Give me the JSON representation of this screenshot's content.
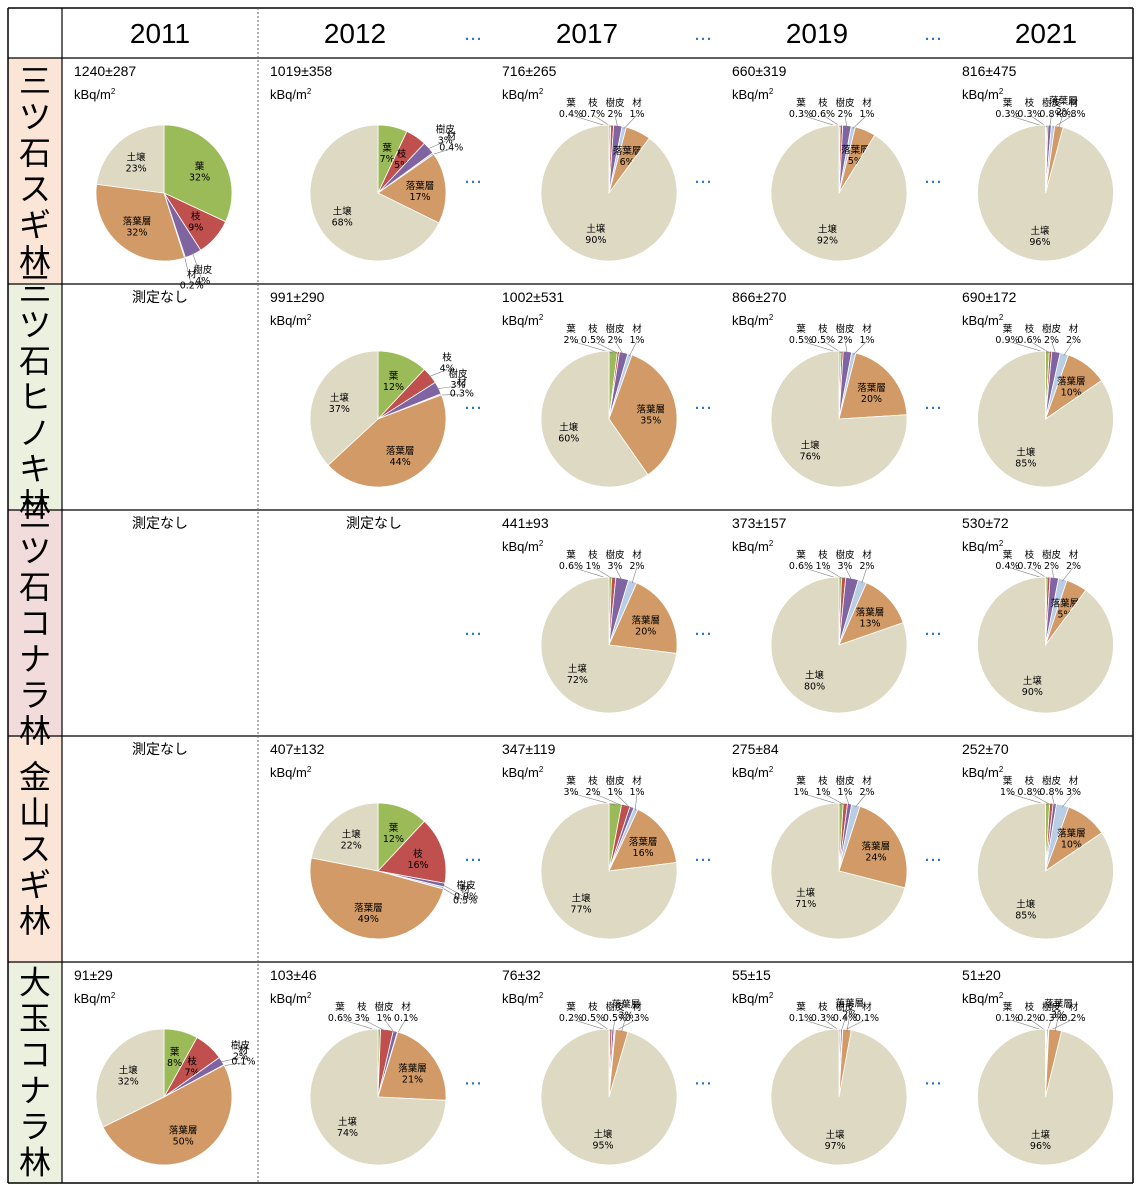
{
  "chart_data": {
    "type": "pie",
    "columns": [
      "2011",
      "2012",
      "2017",
      "2019",
      "2021"
    ],
    "rows": [
      "三ツ石スギ林",
      "三ツ石ヒノキ林",
      "三ツ石コナラ林",
      "金山スギ林",
      "大玉コナラ林"
    ],
    "unit": "kBq/m2",
    "no_measurement_label": "測定なし",
    "ellipsis": "…",
    "components": [
      {
        "name": "葉",
        "color": "#9bbb59"
      },
      {
        "name": "枝",
        "color": "#c0504d"
      },
      {
        "name": "樹皮",
        "color": "#8064a2"
      },
      {
        "name": "材",
        "color": "#b9cde5"
      },
      {
        "name": "落葉層",
        "color": "#d19a66"
      },
      {
        "name": "土壌",
        "color": "#ddd9c3"
      }
    ],
    "cells": [
      [
        {
          "total": "1240±287",
          "values": [
            32,
            9,
            4,
            0.2,
            32,
            23
          ],
          "labels": [
            "32%",
            "9%",
            "4%",
            "0.2%",
            "32%",
            "23%"
          ]
        },
        {
          "total": "1019±358",
          "values": [
            7,
            5,
            3,
            0.4,
            17,
            68
          ],
          "labels": [
            "7%",
            "5%",
            "3%",
            "0.4%",
            "17%",
            "68%"
          ]
        },
        {
          "total": "716±265",
          "values": [
            0.4,
            0.7,
            2,
            1,
            6,
            90
          ],
          "labels": [
            "0.4%",
            "0.7%",
            "2%",
            "1%",
            "6%",
            "90%"
          ]
        },
        {
          "total": "660±319",
          "values": [
            0.3,
            0.6,
            2,
            1,
            5,
            92
          ],
          "labels": [
            "0.3%",
            "0.6%",
            "2%",
            "1%",
            "5%",
            "92%"
          ]
        },
        {
          "total": "816±475",
          "values": [
            0.3,
            0.3,
            0.8,
            0.8,
            2,
            96
          ],
          "labels": [
            "0.3%",
            "0.3%",
            "0.8%",
            "0.8%",
            "2%",
            "96%"
          ]
        }
      ],
      [
        null,
        {
          "total": "991±290",
          "values": [
            12,
            4,
            3,
            0.3,
            44,
            37
          ],
          "labels": [
            "12%",
            "4%",
            "3%",
            "0.3%",
            "44%",
            "37%"
          ]
        },
        {
          "total": "1002±531",
          "values": [
            2,
            0.5,
            2,
            1,
            35,
            60
          ],
          "labels": [
            "2%",
            "0.5%",
            "2%",
            "1%",
            "35%",
            "60%"
          ]
        },
        {
          "total": "866±270",
          "values": [
            0.5,
            0.5,
            2,
            1,
            20,
            76
          ],
          "labels": [
            "0.5%",
            "0.5%",
            "2%",
            "1%",
            "20%",
            "76%"
          ]
        },
        {
          "total": "690±172",
          "values": [
            0.9,
            0.6,
            2,
            2,
            10,
            85
          ],
          "labels": [
            "0.9%",
            "0.6%",
            "2%",
            "2%",
            "10%",
            "85%"
          ]
        }
      ],
      [
        null,
        null,
        {
          "total": "441±93",
          "values": [
            0.6,
            1,
            3,
            2,
            20,
            72
          ],
          "labels": [
            "0.6%",
            "1%",
            "3%",
            "2%",
            "20%",
            "72%"
          ]
        },
        {
          "total": "373±157",
          "values": [
            0.6,
            1,
            3,
            2,
            13,
            80
          ],
          "labels": [
            "0.6%",
            "1%",
            "3%",
            "2%",
            "13%",
            "80%"
          ]
        },
        {
          "total": "530±72",
          "values": [
            0.4,
            0.7,
            2,
            2,
            5,
            90
          ],
          "labels": [
            "0.4%",
            "0.7%",
            "2%",
            "2%",
            "5%",
            "90%"
          ]
        }
      ],
      [
        null,
        {
          "total": "407±132",
          "values": [
            12,
            16,
            0.9,
            0.5,
            49,
            22
          ],
          "labels": [
            "12%",
            "16%",
            "0.9%",
            "0.5%",
            "49%",
            "22%"
          ]
        },
        {
          "total": "347±119",
          "values": [
            3,
            2,
            1,
            1,
            16,
            77
          ],
          "labels": [
            "3%",
            "2%",
            "1%",
            "1%",
            "16%",
            "77%"
          ]
        },
        {
          "total": "275±84",
          "values": [
            1,
            1,
            1,
            2,
            24,
            71
          ],
          "labels": [
            "1%",
            "1%",
            "1%",
            "2%",
            "24%",
            "71%"
          ]
        },
        {
          "total": "252±70",
          "values": [
            1,
            0.8,
            0.8,
            3,
            10,
            85
          ],
          "labels": [
            "1%",
            "0.8%",
            "0.8%",
            "3%",
            "10%",
            "85%"
          ]
        }
      ],
      [
        {
          "total": "91±29",
          "values": [
            8,
            7,
            2,
            0.1,
            50,
            32
          ],
          "labels": [
            "8%",
            "7%",
            "2%",
            "0.1%",
            "50%",
            "32%"
          ]
        },
        {
          "total": "103±46",
          "values": [
            0.6,
            3,
            1,
            0.1,
            21,
            74
          ],
          "labels": [
            "0.6%",
            "3%",
            "1%",
            "0.1%",
            "21%",
            "74%"
          ]
        },
        {
          "total": "76±32",
          "values": [
            0.2,
            0.5,
            0.5,
            0.3,
            3,
            95
          ],
          "labels": [
            "0.2%",
            "0.5%",
            "0.5%",
            "0.3%",
            "3%",
            "95%"
          ]
        },
        {
          "total": "55±15",
          "values": [
            0.1,
            0.3,
            0.4,
            0.1,
            2,
            97
          ],
          "labels": [
            "0.1%",
            "0.3%",
            "0.4%",
            "0.1%",
            "2%",
            "97%"
          ]
        },
        {
          "total": "51±20",
          "values": [
            0.1,
            0.2,
            0.3,
            0.2,
            3,
            96
          ],
          "labels": [
            "0.1%",
            "0.2%",
            "0.3%",
            "0.2%",
            "3%",
            "96%"
          ]
        }
      ]
    ],
    "row_colors": [
      "#fbe5d6",
      "#ebf1de",
      "#f2dcdb",
      "#fbe5d6",
      "#ebf1de"
    ]
  }
}
